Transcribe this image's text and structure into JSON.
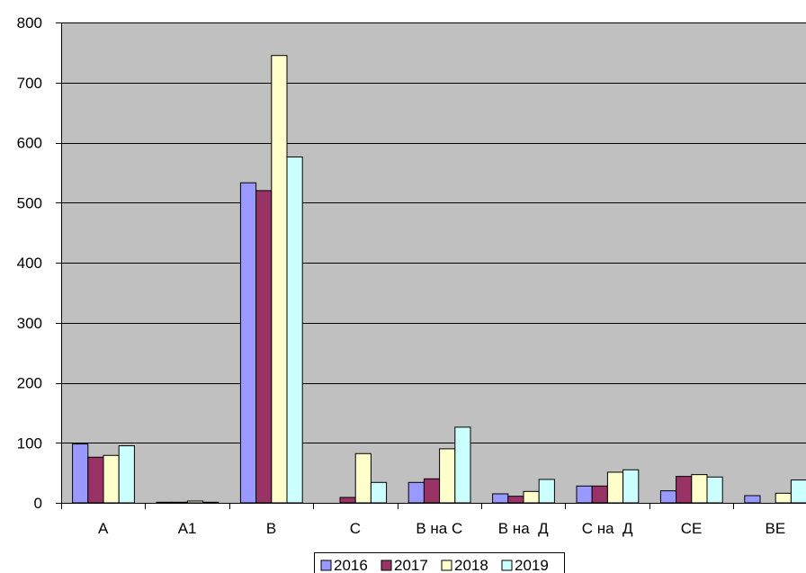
{
  "chart_data": {
    "type": "bar",
    "title": "",
    "xlabel": "",
    "ylabel": "",
    "ylim": [
      0,
      800
    ],
    "yticks": [
      0,
      100,
      200,
      300,
      400,
      500,
      600,
      700,
      800
    ],
    "ytick_labels": [
      "0",
      "100",
      "200",
      "300",
      "400",
      "500",
      "600",
      "700",
      "800"
    ],
    "grid": true,
    "legend_position": "bottom-center",
    "plot_background": "#C0C0C0",
    "categories": [
      "A",
      "A1",
      "B",
      "C",
      "B на C",
      "B на  Д",
      "C на  Д",
      "CE",
      "BE"
    ],
    "series": [
      {
        "name": "2016",
        "color": "#9999FF",
        "values": [
          98,
          1,
          533,
          0,
          34,
          15,
          28,
          20,
          12
        ]
      },
      {
        "name": "2017",
        "color": "#993366",
        "values": [
          76,
          1,
          520,
          9,
          40,
          11,
          28,
          44,
          0
        ]
      },
      {
        "name": "2018",
        "color": "#FFFFCC",
        "values": [
          79,
          3,
          745,
          82,
          90,
          19,
          51,
          47,
          16
        ]
      },
      {
        "name": "2019",
        "color": "#CCFFFF",
        "values": [
          95,
          1,
          576,
          34,
          126,
          39,
          55,
          43,
          38
        ]
      }
    ]
  }
}
